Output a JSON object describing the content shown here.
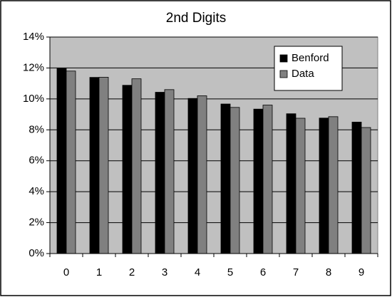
{
  "chart_data": {
    "type": "bar",
    "title": "2nd Digits",
    "categories": [
      "0",
      "1",
      "2",
      "3",
      "4",
      "5",
      "6",
      "7",
      "8",
      "9"
    ],
    "series": [
      {
        "name": "Benford",
        "color": "#000000",
        "values": [
          11.97,
          11.39,
          10.88,
          10.43,
          10.03,
          9.67,
          9.34,
          9.04,
          8.76,
          8.5
        ]
      },
      {
        "name": "Data",
        "color": "#808080",
        "values": [
          11.8,
          11.4,
          11.3,
          10.6,
          10.2,
          9.45,
          9.6,
          8.75,
          8.85,
          8.15
        ]
      }
    ],
    "ylim": [
      0,
      14
    ],
    "yticks": [
      {
        "value": 0,
        "label": "0%"
      },
      {
        "value": 2,
        "label": "2%"
      },
      {
        "value": 4,
        "label": "4%"
      },
      {
        "value": 6,
        "label": "6%"
      },
      {
        "value": 8,
        "label": "8%"
      },
      {
        "value": 10,
        "label": "10%"
      },
      {
        "value": 12,
        "label": "12%"
      },
      {
        "value": 14,
        "label": "14%"
      }
    ],
    "grid": true,
    "legend": "upper right",
    "plot_background": "#c0c0c0"
  }
}
